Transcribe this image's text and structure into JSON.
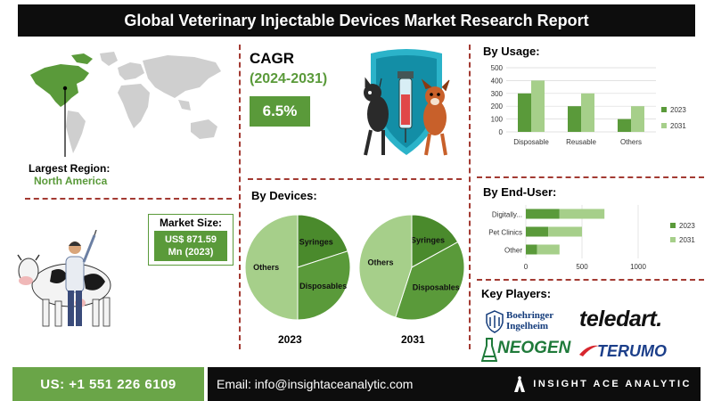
{
  "header": {
    "title": "Global Veterinary Injectable Devices Market Research Report"
  },
  "region": {
    "label": "Largest Region:",
    "value": "North America"
  },
  "market_size": {
    "label": "Market Size:",
    "value_line1": "US$ 871.59",
    "value_line2": "Mn (2023)"
  },
  "cagr": {
    "label": "CAGR",
    "period": "(2024-2031)",
    "value": "6.5%"
  },
  "devices": {
    "heading": "By Devices:"
  },
  "usage": {
    "heading": "By Usage:"
  },
  "end_user": {
    "heading": "By End-User:"
  },
  "key_players": {
    "heading": "Key Players:",
    "boehringer_line1": "Boehringer",
    "boehringer_line2": "Ingelheim",
    "teledart": "teledart.",
    "neogen": "NEOGEN",
    "terumo": "TERUMO"
  },
  "footer": {
    "phone": "US: +1 551 226 6109",
    "email": "Email: info@insightaceanalytic.com",
    "brand": "INSIGHT ACE ANALYTIC"
  },
  "colors": {
    "dark_green": "#5a9a3a",
    "light_green": "#a6cf8a",
    "accent_red": "#a33a32",
    "black": "#0d0d0d"
  },
  "chart_data": [
    {
      "id": "usage",
      "type": "bar",
      "title": "By Usage:",
      "categories": [
        "Disposable",
        "Reusable",
        "Others"
      ],
      "series": [
        {
          "name": "2023",
          "values": [
            300,
            200,
            100
          ]
        },
        {
          "name": "2031",
          "values": [
            400,
            300,
            200
          ]
        }
      ],
      "ylim": [
        0,
        500
      ],
      "yticks": [
        0,
        100,
        200,
        300,
        400,
        500
      ],
      "legend": "right",
      "grid": true
    },
    {
      "id": "end_user",
      "type": "bar",
      "orientation": "horizontal",
      "title": "By End-User:",
      "categories": [
        "Digitally...",
        "Pet Clinics",
        "Other"
      ],
      "series": [
        {
          "name": "2023",
          "values": [
            300,
            200,
            100
          ]
        },
        {
          "name": "2031",
          "values": [
            400,
            300,
            200
          ]
        }
      ],
      "xlim": [
        0,
        1000
      ],
      "xticks": [
        0,
        500,
        1000
      ],
      "legend": "right",
      "grid": true
    },
    {
      "id": "devices_2023",
      "type": "pie",
      "title": "2023",
      "labels": [
        "Syringes",
        "Disposables",
        "Others"
      ],
      "values": [
        20,
        30,
        50
      ]
    },
    {
      "id": "devices_2031",
      "type": "pie",
      "title": "2031",
      "labels": [
        "Syringes",
        "Disposables",
        "Others"
      ],
      "values": [
        17,
        38,
        45
      ]
    }
  ]
}
